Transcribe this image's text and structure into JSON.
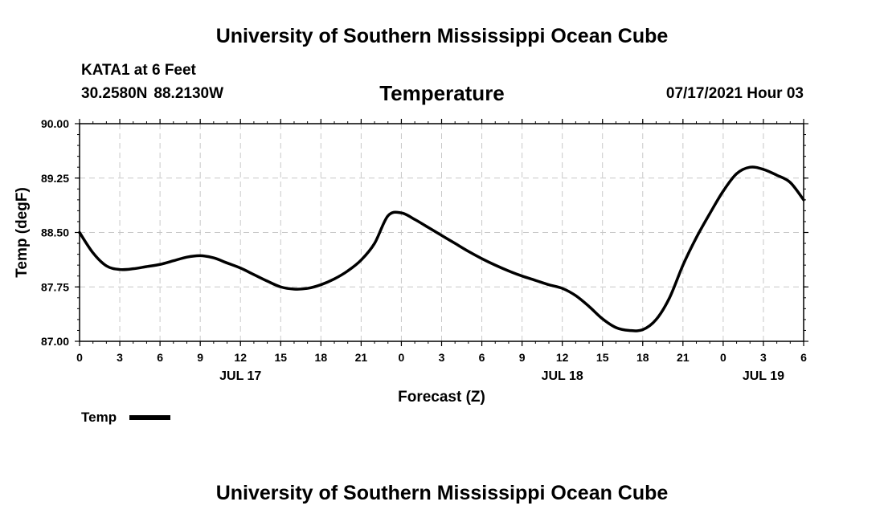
{
  "header": {
    "title": "University of Southern Mississippi Ocean Cube",
    "station": "KATA1 at 6 Feet",
    "latitude": "30.2580N",
    "longitude": "88.2130W",
    "run_time": "07/17/2021 Hour 03"
  },
  "footer": {
    "title": "University of Southern Mississippi Ocean Cube"
  },
  "chart_data": {
    "type": "line",
    "title": "Temperature",
    "xlabel": "Forecast (Z)",
    "ylabel": "Temp (degF)",
    "xlim": [
      0,
      54
    ],
    "ylim": [
      87.0,
      90.0
    ],
    "yticks": [
      "87.00",
      "87.75",
      "88.50",
      "89.25",
      "90.00"
    ],
    "xtick_labels": [
      "0",
      "3",
      "6",
      "9",
      "12",
      "15",
      "18",
      "21",
      "0",
      "3",
      "6",
      "9",
      "12",
      "15",
      "18",
      "21",
      "0",
      "3",
      "6"
    ],
    "date_labels": [
      {
        "text": "JUL 17",
        "hour": 12
      },
      {
        "text": "JUL 18",
        "hour": 36
      },
      {
        "text": "JUL 19",
        "hour": 51
      }
    ],
    "grid": true,
    "legend": {
      "label": "Temp",
      "placement": "bottom-left"
    },
    "series": [
      {
        "name": "Temp",
        "x": [
          0,
          1,
          2,
          3,
          4,
          5,
          6,
          7,
          8,
          9,
          10,
          11,
          12,
          13,
          14,
          15,
          16,
          17,
          18,
          19,
          20,
          21,
          22,
          23,
          24,
          25,
          26,
          27,
          28,
          29,
          30,
          31,
          32,
          33,
          34,
          35,
          36,
          37,
          38,
          39,
          40,
          41,
          42,
          43,
          44,
          45,
          46,
          47,
          48,
          49,
          50,
          51,
          52,
          53,
          54
        ],
        "values": [
          88.5,
          88.22,
          88.04,
          87.99,
          88.0,
          88.03,
          88.06,
          88.11,
          88.16,
          88.18,
          88.15,
          88.08,
          88.01,
          87.92,
          87.83,
          87.75,
          87.72,
          87.73,
          87.78,
          87.86,
          87.97,
          88.12,
          88.35,
          88.73,
          88.77,
          88.68,
          88.57,
          88.46,
          88.35,
          88.24,
          88.14,
          88.05,
          87.97,
          87.9,
          87.84,
          87.78,
          87.73,
          87.63,
          87.48,
          87.31,
          87.19,
          87.15,
          87.16,
          87.3,
          87.6,
          88.05,
          88.43,
          88.76,
          89.07,
          89.31,
          89.4,
          89.37,
          89.29,
          89.19,
          88.95
        ]
      }
    ]
  }
}
